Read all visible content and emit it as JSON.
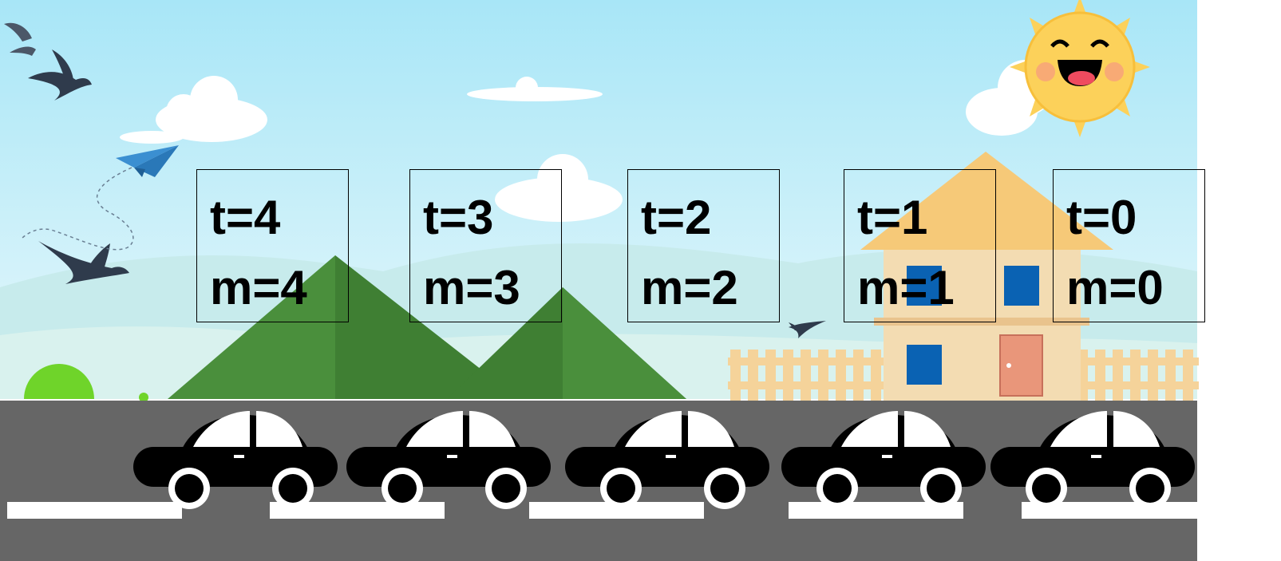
{
  "scene": {
    "colors": {
      "sky_top": "#a8e6f7",
      "sky_bottom": "#e7f8fb",
      "mountain": "#4a8f3c",
      "road": "#666666",
      "lane": "#ffffff",
      "car": "#000000",
      "sun": "#fcd15a",
      "house_wall": "#f3dcb2",
      "house_roof": "#f6c978",
      "window": "#0a62b3",
      "door": "#e9967a",
      "fence": "#f5d39a",
      "bush": "#6fd42a"
    },
    "icons": [
      "bird-icon",
      "paper-plane-icon",
      "sun-icon",
      "cloud-icon",
      "house-icon",
      "car-icon"
    ]
  },
  "frames": [
    {
      "t": "t=4",
      "m": "m=4"
    },
    {
      "t": "t=3",
      "m": "m=3"
    },
    {
      "t": "t=2",
      "m": "m=2"
    },
    {
      "t": "t=1",
      "m": "m=1"
    },
    {
      "t": "t=0",
      "m": "m=0"
    }
  ]
}
